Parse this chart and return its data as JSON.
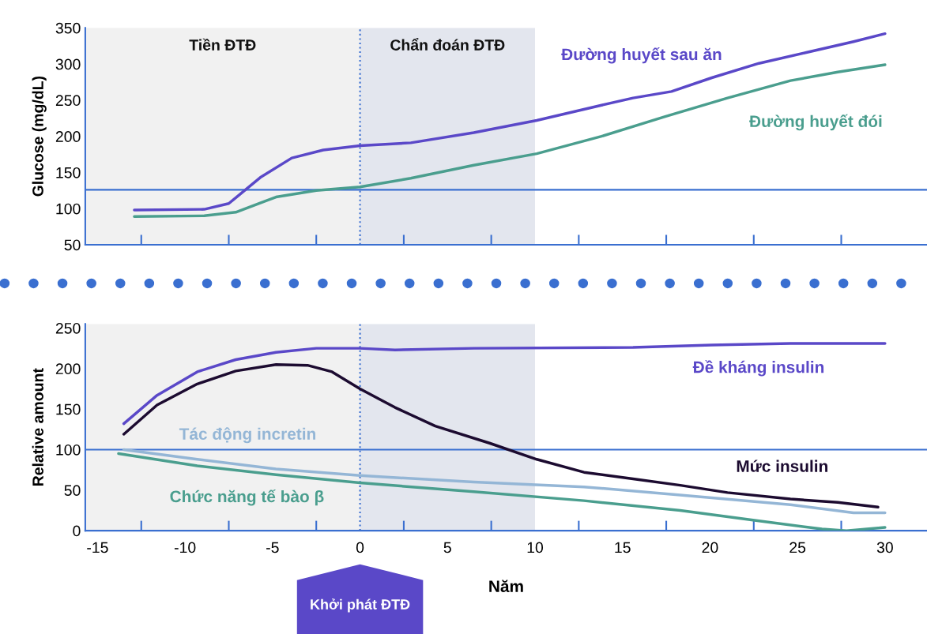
{
  "chart_data": [
    {
      "type": "line",
      "ylabel": "Glucose (mg/dL)",
      "xlim": [
        -15.7,
        32.4
      ],
      "ylim": [
        50,
        350
      ],
      "yticks": [
        50,
        100,
        150,
        200,
        250,
        300,
        350
      ],
      "xticks": [
        {
          "value": -12.5,
          "label": null
        },
        {
          "value": -7.5,
          "label": null
        },
        {
          "value": -2.5,
          "label": null
        },
        {
          "value": 2.5,
          "label": null
        },
        {
          "value": 7.5,
          "label": null
        },
        {
          "value": 12.5,
          "label": null
        },
        {
          "value": 17.5,
          "label": null
        },
        {
          "value": 22.5,
          "label": null
        },
        {
          "value": 27.5,
          "label": null
        }
      ],
      "tick_labels": "y",
      "grid": false,
      "bands": [
        {
          "axis": "x",
          "from": -15.7,
          "to": 0,
          "label": "Tiền ĐTĐ",
          "color": "#f1f1f1"
        },
        {
          "axis": "x",
          "from": 0,
          "to": 10,
          "label": "Chẩn đoán ĐTĐ",
          "color": "#e3e6ee"
        }
      ],
      "ref_lines": [
        {
          "axis": "y",
          "value": 126,
          "color": "#3a6fd0",
          "line_style": "solid"
        },
        {
          "axis": "x",
          "value": 0,
          "color": "#3a6fd0",
          "line_style": "dotted"
        }
      ],
      "series": [
        {
          "name": "Đường huyết sau ăn",
          "color": "#5a48c8",
          "x": [
            -12.9,
            -8.9,
            -7.5,
            -5.7,
            -3.9,
            -2.1,
            0,
            2.9,
            6.5,
            10.1,
            13.8,
            15.6,
            17.8,
            20.1,
            22.8,
            25.5,
            28.2,
            30
          ],
          "values": [
            98,
            99,
            107,
            143,
            170,
            181,
            187,
            191,
            205,
            222,
            243,
            253,
            262,
            281,
            301,
            316,
            331,
            342
          ]
        },
        {
          "name": "Đường huyết đói",
          "color": "#4a9e8e",
          "x": [
            -12.9,
            -8.9,
            -7.1,
            -4.8,
            -2.5,
            0,
            2.9,
            6.5,
            10.1,
            13.8,
            17.4,
            21,
            24.6,
            27.3,
            30
          ],
          "values": [
            89,
            90,
            95,
            116,
            125,
            130,
            142,
            160,
            176,
            200,
            227,
            253,
            277,
            289,
            299
          ]
        }
      ]
    },
    {
      "type": "line",
      "ylabel": "Relative amount",
      "xlabel": "Năm",
      "xlim": [
        -15.7,
        32.4
      ],
      "ylim": [
        0,
        255
      ],
      "yticks": [
        0,
        50,
        100,
        150,
        200,
        250
      ],
      "xticks": [
        -15,
        -10,
        -5,
        0,
        5,
        10,
        15,
        20,
        25,
        30,
        {
          "value": -12.5,
          "label": null
        },
        {
          "value": -7.5,
          "label": null
        },
        {
          "value": -2.5,
          "label": null
        },
        {
          "value": 2.5,
          "label": null
        },
        {
          "value": 7.5,
          "label": null
        },
        {
          "value": 12.5,
          "label": null
        },
        {
          "value": 17.5,
          "label": null
        },
        {
          "value": 22.5,
          "label": null
        },
        {
          "value": 27.5,
          "label": null
        }
      ],
      "grid": false,
      "bands": [
        {
          "axis": "x",
          "from": -15.7,
          "to": 0,
          "color": "#f1f1f1"
        },
        {
          "axis": "x",
          "from": 0,
          "to": 10,
          "color": "#e3e6ee"
        }
      ],
      "ref_lines": [
        {
          "axis": "y",
          "value": 100,
          "color": "#3a6fd0",
          "line_style": "solid"
        },
        {
          "axis": "x",
          "value": 0,
          "color": "#3a6fd0",
          "line_style": "dotted"
        }
      ],
      "annotations": [
        "Khởi phát ĐTĐ"
      ],
      "series": [
        {
          "name": "Đề kháng insulin",
          "color": "#5a48c8",
          "x": [
            -13.5,
            -11.6,
            -9.3,
            -7.1,
            -4.8,
            -2.5,
            0,
            2,
            6.5,
            15.6,
            20.1,
            24.6,
            30
          ],
          "values": [
            132,
            167,
            196,
            211,
            220,
            225,
            225,
            223,
            225,
            226,
            229,
            231,
            231
          ]
        },
        {
          "name": "Mức insulin",
          "color": "#1c0b30",
          "x": [
            -13.5,
            -11.6,
            -9.3,
            -7.1,
            -4.8,
            -3,
            -1.6,
            0,
            2,
            4.3,
            7.4,
            10.1,
            12.8,
            15.6,
            18.3,
            21,
            24.6,
            27.3,
            29.6
          ],
          "values": [
            119,
            155,
            181,
            197,
            205,
            204,
            196,
            175,
            152,
            129,
            108,
            88,
            72,
            64,
            56,
            47,
            39,
            35,
            29
          ]
        },
        {
          "name": "Tác động incretin",
          "color": "#94b6d6",
          "x": [
            -13.5,
            -9.3,
            -4.8,
            0,
            6.5,
            12.8,
            18.3,
            24.6,
            28.2,
            30
          ],
          "values": [
            100,
            88,
            76,
            68,
            60,
            54,
            44,
            32,
            22,
            22
          ]
        },
        {
          "name": "Chức năng tế bào β",
          "color": "#4a9e8e",
          "x": [
            -13.8,
            -9.3,
            -4.8,
            0,
            6.5,
            12.8,
            18.3,
            22.8,
            26.4,
            27.8,
            30
          ],
          "values": [
            95,
            80,
            69,
            59,
            48,
            37,
            25,
            12,
            2,
            0,
            4
          ]
        }
      ]
    }
  ]
}
